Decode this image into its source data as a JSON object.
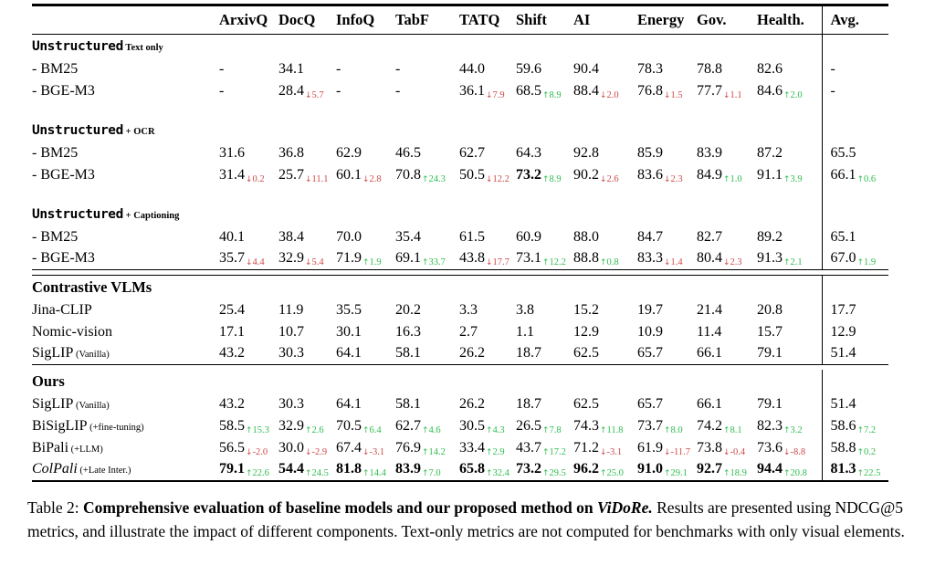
{
  "table": {
    "columns": [
      "ArxivQ",
      "DocQ",
      "InfoQ",
      "TabF",
      "TATQ",
      "Shift",
      "AI",
      "Energy",
      "Gov.",
      "Health.",
      "Avg."
    ],
    "colors": {
      "up": "#2ebd4e",
      "down": "#cf4848"
    },
    "sections": [
      {
        "rule_before": "none",
        "header": {
          "text": "Unstructured",
          "suffix": "Text only",
          "mono": true
        },
        "rows": [
          {
            "label": "- BM25",
            "cells": [
              "-",
              "34.1",
              "-",
              "-",
              "44.0",
              "59.6",
              "90.4",
              "78.3",
              "78.8",
              "82.6",
              "-"
            ]
          },
          {
            "label": "- BGE-M3",
            "cells": [
              "-",
              {
                "v": "28.4",
                "arrow": "down",
                "delta": "5.7"
              },
              "-",
              "-",
              {
                "v": "36.1",
                "arrow": "down",
                "delta": "7.9"
              },
              {
                "v": "68.5",
                "arrow": "up",
                "delta": "8.9"
              },
              {
                "v": "88.4",
                "arrow": "down",
                "delta": "2.0"
              },
              {
                "v": "76.8",
                "arrow": "down",
                "delta": "1.5"
              },
              {
                "v": "77.7",
                "arrow": "down",
                "delta": "1.1"
              },
              {
                "v": "84.6",
                "arrow": "up",
                "delta": "2.0"
              },
              "-"
            ]
          }
        ]
      },
      {
        "rule_before": "gap",
        "header": {
          "text": "Unstructured",
          "suffix": "+ OCR",
          "mono": true
        },
        "rows": [
          {
            "label": "- BM25",
            "cells": [
              "31.6",
              "36.8",
              "62.9",
              "46.5",
              "62.7",
              "64.3",
              "92.8",
              "85.9",
              "83.9",
              "87.2",
              "65.5"
            ]
          },
          {
            "label": "- BGE-M3",
            "cells": [
              {
                "v": "31.4",
                "arrow": "down",
                "delta": "0.2"
              },
              {
                "v": "25.7",
                "arrow": "down",
                "delta": "11.1"
              },
              {
                "v": "60.1",
                "arrow": "down",
                "delta": "2.8"
              },
              {
                "v": "70.8",
                "arrow": "up",
                "delta": "24.3"
              },
              {
                "v": "50.5",
                "arrow": "down",
                "delta": "12.2"
              },
              {
                "v": "73.2",
                "arrow": "up",
                "delta": "8.9",
                "bold": true
              },
              {
                "v": "90.2",
                "arrow": "down",
                "delta": "2.6"
              },
              {
                "v": "83.6",
                "arrow": "down",
                "delta": "2.3"
              },
              {
                "v": "84.9",
                "arrow": "up",
                "delta": "1.0"
              },
              {
                "v": "91.1",
                "arrow": "up",
                "delta": "3.9"
              },
              {
                "v": "66.1",
                "arrow": "up",
                "delta": "0.6"
              }
            ]
          }
        ]
      },
      {
        "rule_before": "gap",
        "header": {
          "text": "Unstructured",
          "suffix": "+ Captioning",
          "mono": true
        },
        "rows": [
          {
            "label": "- BM25",
            "cells": [
              "40.1",
              "38.4",
              "70.0",
              "35.4",
              "61.5",
              "60.9",
              "88.0",
              "84.7",
              "82.7",
              "89.2",
              "65.1"
            ]
          },
          {
            "label": "- BGE-M3",
            "cells": [
              {
                "v": "35.7",
                "arrow": "down",
                "delta": "4.4"
              },
              {
                "v": "32.9",
                "arrow": "down",
                "delta": "5.4"
              },
              {
                "v": "71.9",
                "arrow": "up",
                "delta": "1.9"
              },
              {
                "v": "69.1",
                "arrow": "up",
                "delta": "33.7"
              },
              {
                "v": "43.8",
                "arrow": "down",
                "delta": "17.7"
              },
              {
                "v": "73.1",
                "arrow": "up",
                "delta": "12.2"
              },
              {
                "v": "88.8",
                "arrow": "up",
                "delta": "0.8"
              },
              {
                "v": "83.3",
                "arrow": "down",
                "delta": "1.4"
              },
              {
                "v": "80.4",
                "arrow": "down",
                "delta": "2.3"
              },
              {
                "v": "91.3",
                "arrow": "up",
                "delta": "2.1"
              },
              {
                "v": "67.0",
                "arrow": "up",
                "delta": "1.9"
              }
            ]
          }
        ]
      },
      {
        "rule_before": "double",
        "header": {
          "text": "Contrastive VLMs"
        },
        "rows": [
          {
            "label": "Jina-CLIP",
            "cells": [
              "25.4",
              "11.9",
              "35.5",
              "20.2",
              "3.3",
              "3.8",
              "15.2",
              "19.7",
              "21.4",
              "20.8",
              "17.7"
            ]
          },
          {
            "label": "Nomic-vision",
            "cells": [
              "17.1",
              "10.7",
              "30.1",
              "16.3",
              "2.7",
              "1.1",
              "12.9",
              "10.9",
              "11.4",
              "15.7",
              "12.9"
            ]
          },
          {
            "label": "SigLIP",
            "suffix": "(Vanilla)",
            "cells": [
              "43.2",
              "30.3",
              "64.1",
              "58.1",
              "26.2",
              "18.7",
              "62.5",
              "65.7",
              "66.1",
              "79.1",
              "51.4"
            ]
          }
        ]
      },
      {
        "rule_before": "single",
        "header": {
          "text": "Ours"
        },
        "rows": [
          {
            "label": "SigLIP",
            "suffix": "(Vanilla)",
            "cells": [
              "43.2",
              "30.3",
              "64.1",
              "58.1",
              "26.2",
              "18.7",
              "62.5",
              "65.7",
              "66.1",
              "79.1",
              "51.4"
            ]
          },
          {
            "label": "BiSigLIP",
            "suffix": "(+fine-tuning)",
            "cells": [
              {
                "v": "58.5",
                "arrow": "up",
                "delta": "15.3"
              },
              {
                "v": "32.9",
                "arrow": "up",
                "delta": "2.6"
              },
              {
                "v": "70.5",
                "arrow": "up",
                "delta": "6.4"
              },
              {
                "v": "62.7",
                "arrow": "up",
                "delta": "4.6"
              },
              {
                "v": "30.5",
                "arrow": "up",
                "delta": "4.3"
              },
              {
                "v": "26.5",
                "arrow": "up",
                "delta": "7.8"
              },
              {
                "v": "74.3",
                "arrow": "up",
                "delta": "11.8"
              },
              {
                "v": "73.7",
                "arrow": "up",
                "delta": "8.0"
              },
              {
                "v": "74.2",
                "arrow": "up",
                "delta": "8.1"
              },
              {
                "v": "82.3",
                "arrow": "up",
                "delta": "3.2"
              },
              {
                "v": "58.6",
                "arrow": "up",
                "delta": "7.2"
              }
            ]
          },
          {
            "label": "BiPali",
            "suffix": "(+LLM)",
            "cells": [
              {
                "v": "56.5",
                "arrow": "down",
                "delta": "-2.0"
              },
              {
                "v": "30.0",
                "arrow": "down",
                "delta": "-2.9"
              },
              {
                "v": "67.4",
                "arrow": "down",
                "delta": "-3.1"
              },
              {
                "v": "76.9",
                "arrow": "up",
                "delta": "14.2"
              },
              {
                "v": "33.4",
                "arrow": "up",
                "delta": "2.9"
              },
              {
                "v": "43.7",
                "arrow": "up",
                "delta": "17.2"
              },
              {
                "v": "71.2",
                "arrow": "down",
                "delta": "-3.1"
              },
              {
                "v": "61.9",
                "arrow": "down",
                "delta": "-11.7"
              },
              {
                "v": "73.8",
                "arrow": "down",
                "delta": "-0.4"
              },
              {
                "v": "73.6",
                "arrow": "down",
                "delta": "-8.8"
              },
              {
                "v": "58.8",
                "arrow": "up",
                "delta": "0.2"
              }
            ]
          },
          {
            "label": "ColPali",
            "italic": true,
            "suffix": "(+Late Inter.)",
            "cells": [
              {
                "v": "79.1",
                "arrow": "up",
                "delta": "22.6",
                "bold": true
              },
              {
                "v": "54.4",
                "arrow": "up",
                "delta": "24.5",
                "bold": true
              },
              {
                "v": "81.8",
                "arrow": "up",
                "delta": "14.4",
                "bold": true
              },
              {
                "v": "83.9",
                "arrow": "up",
                "delta": "7.0",
                "bold": true
              },
              {
                "v": "65.8",
                "arrow": "up",
                "delta": "32.4",
                "bold": true
              },
              {
                "v": "73.2",
                "arrow": "up",
                "delta": "29.5",
                "bold": true
              },
              {
                "v": "96.2",
                "arrow": "up",
                "delta": "25.0",
                "bold": true
              },
              {
                "v": "91.0",
                "arrow": "up",
                "delta": "29.1",
                "bold": true
              },
              {
                "v": "92.7",
                "arrow": "up",
                "delta": "18.9",
                "bold": true
              },
              {
                "v": "94.4",
                "arrow": "up",
                "delta": "20.8",
                "bold": true
              },
              {
                "v": "81.3",
                "arrow": "up",
                "delta": "22.5",
                "bold": true
              }
            ]
          }
        ]
      }
    ]
  },
  "caption": {
    "prefix": "Table 2:",
    "bold": "Comprehensive evaluation of baseline models and our proposed method on",
    "bold_italic": "ViDoRe.",
    "rest": "Results are presented using NDCG@5 metrics, and illustrate the impact of different components. Text-only metrics are not computed for benchmarks with only visual elements."
  }
}
